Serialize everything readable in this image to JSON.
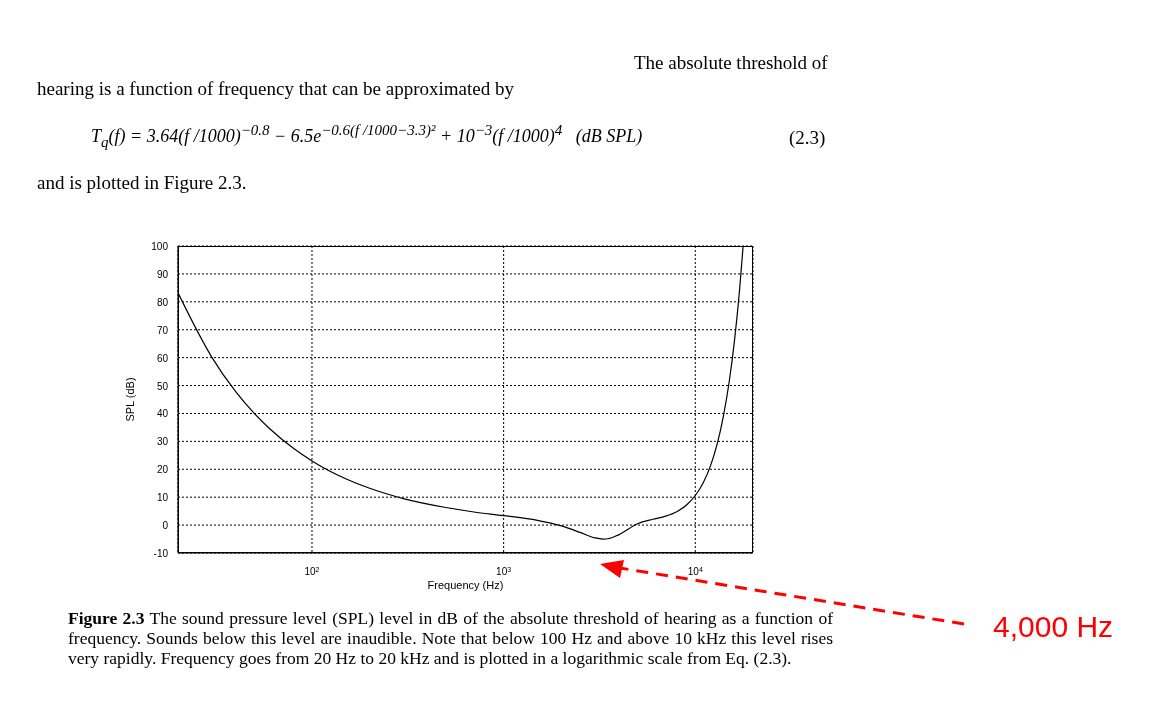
{
  "chart_data": {
    "type": "line",
    "xlabel": "Frequency (Hz)",
    "ylabel": "SPL (dB)",
    "annotations": [
      "The absolute threshold of hearing is a function of frequency that can be approximated by",
      "T$_{q}$(f) = 3.64(f /1000)$^{−0.8}$ − 6.5e$^{−0.6(f /1000−3.3)²}$ + 10$^{−3}$(f /1000)$^{4}$   (dB SPL)",
      "(2.3)",
      "and is plotted in Figure 2.3.",
      "Figure 2.3 The sound pressure level (SPL) level in dB of the absolute threshold of hearing as a function of frequency. Sounds below this level are inaudible. Note that below 100 Hz and above 10 kHz this level rises very rapidly. Frequency goes from 20 Hz to 20 kHz and is plotted in a logarithmic scale from Eq. (2.3).",
      "4,000 Hz"
    ],
    "log": "x",
    "x": [
      20,
      30,
      40,
      50,
      60,
      80,
      100,
      150,
      200,
      300,
      500,
      700,
      1000,
      1500,
      2000,
      2500,
      3000,
      3300,
      3500,
      4000,
      5000,
      6000,
      7000,
      8000,
      9000,
      10000,
      11000,
      12000,
      14000,
      15000,
      16000,
      17000,
      17760
    ],
    "series": [
      {
        "color": "#000000",
        "values": [
          83.2,
          60.2,
          47.8,
          40.0,
          34.6,
          27.5,
          23.0,
          16.6,
          13.2,
          9.5,
          6.3,
          4.7,
          3.4,
          1.7,
          -0.3,
          -2.6,
          -4.6,
          -5.0,
          -4.9,
          -3.4,
          0.5,
          2.1,
          3.2,
          4.8,
          7.2,
          10.6,
          15.2,
          21.2,
          38.9,
          51.0,
          65.9,
          83.9,
          99.9
        ]
      }
    ],
    "xlim": [
      20,
      20000
    ],
    "xticks": [
      {
        "value": 100,
        "label": "10$^{2}$"
      },
      {
        "value": 1000,
        "label": "10$^{3}$"
      },
      {
        "value": 10000,
        "label": "10$^{4}$"
      }
    ],
    "ylim": [
      -10,
      100
    ],
    "yticks": [
      -10,
      0,
      10,
      20,
      30,
      40,
      50,
      60,
      70,
      80,
      90,
      100
    ],
    "grid": true,
    "marker": "none",
    "line_style": "solid"
  }
}
